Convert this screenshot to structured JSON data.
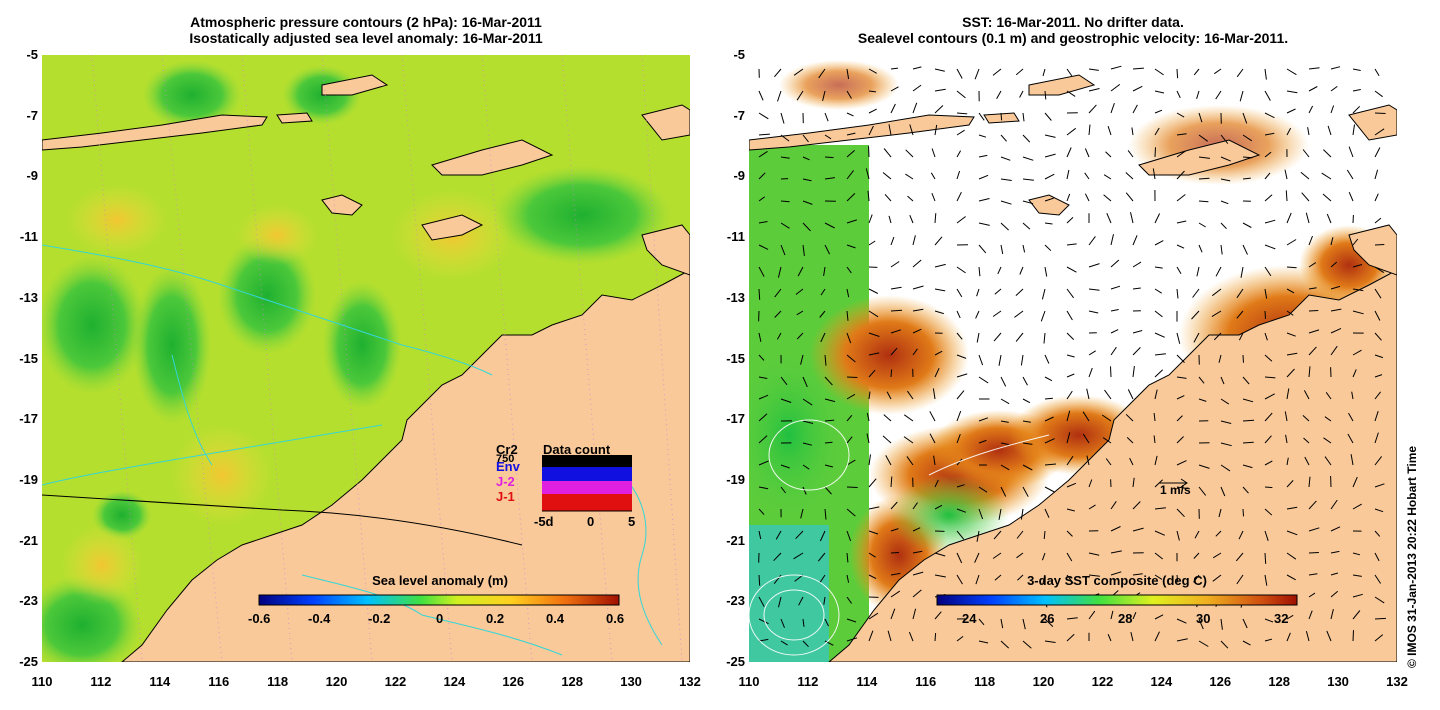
{
  "left_panel": {
    "title_line1": "Atmospheric pressure contours (2 hPa): 16-Mar-2011",
    "title_line2": "Isostatically adjusted sea level anomaly: 16-Mar-2011",
    "colorbar_title": "Sea level anomaly (m)",
    "colorbar_ticks": [
      "-0.6",
      "-0.4",
      "-0.2",
      "0",
      "0.2",
      "0.4",
      "0.6"
    ],
    "legend": {
      "satellites": [
        "Cr2",
        "750",
        "Env",
        "J-2",
        "J-1"
      ],
      "colors": [
        "#000000",
        "#000000",
        "#1010e0",
        "#e020e0",
        "#e01010"
      ],
      "chart_title": "Data count",
      "axis_ticks": [
        "-5d",
        "0",
        "5"
      ]
    }
  },
  "right_panel": {
    "title_line1": "SST: 16-Mar-2011. No drifter data.",
    "title_line2": "Sealevel contours (0.1 m) and geostrophic velocity: 16-Mar-2011.",
    "colorbar_title": "3-day SST composite (deg C)",
    "colorbar_ticks": [
      "24",
      "26",
      "28",
      "30",
      "32"
    ],
    "velocity_label": "1 m/s"
  },
  "y_ticks": [
    "-5",
    "-7",
    "-9",
    "-11",
    "-13",
    "-15",
    "-17",
    "-19",
    "-21",
    "-23",
    "-25"
  ],
  "x_ticks": [
    "110",
    "112",
    "114",
    "116",
    "118",
    "120",
    "122",
    "124",
    "126",
    "128",
    "130",
    "132"
  ],
  "copyright": "© IMOS 31-Jan-2013 20:22 Hobart Time",
  "colors": {
    "land": "#f9c99a",
    "sla_base": "#b8e030",
    "coast": "#000000",
    "contour": "#33d6d6"
  }
}
